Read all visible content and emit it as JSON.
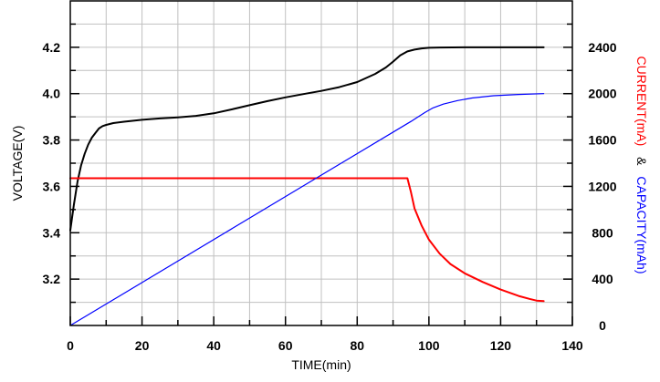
{
  "chart_data": {
    "type": "line",
    "title": "",
    "xlabel": "TIME(min)",
    "ylabel": "VOLTAGE(V)",
    "y2label": {
      "parts": [
        {
          "text": "CURRENT(mA)",
          "color": "#ff0000"
        },
        {
          "text": "&",
          "color": "#000000"
        },
        {
          "text": "CAPACITY(mAh)",
          "color": "#0000ff"
        }
      ]
    },
    "xlim": [
      0,
      140
    ],
    "ylim": [
      3.0,
      4.4
    ],
    "y2lim": [
      0,
      2800
    ],
    "xticks": [
      0,
      20,
      40,
      60,
      80,
      100,
      120,
      140
    ],
    "yticks": [
      3.2,
      3.4,
      3.6,
      3.8,
      4.0,
      4.2
    ],
    "y2ticks": [
      0,
      400,
      800,
      1200,
      1600,
      2000,
      2400
    ],
    "grid": true,
    "series": [
      {
        "name": "VOLTAGE(V)",
        "axis": "left",
        "color": "#000000",
        "points": [
          [
            0,
            3.41
          ],
          [
            1,
            3.52
          ],
          [
            2,
            3.62
          ],
          [
            3,
            3.69
          ],
          [
            4,
            3.74
          ],
          [
            5,
            3.78
          ],
          [
            6,
            3.81
          ],
          [
            7,
            3.83
          ],
          [
            8,
            3.85
          ],
          [
            9,
            3.86
          ],
          [
            10,
            3.865
          ],
          [
            12,
            3.873
          ],
          [
            15,
            3.879
          ],
          [
            20,
            3.887
          ],
          [
            25,
            3.893
          ],
          [
            30,
            3.898
          ],
          [
            35,
            3.904
          ],
          [
            40,
            3.915
          ],
          [
            45,
            3.932
          ],
          [
            50,
            3.95
          ],
          [
            55,
            3.968
          ],
          [
            60,
            3.984
          ],
          [
            65,
            3.998
          ],
          [
            70,
            4.012
          ],
          [
            75,
            4.028
          ],
          [
            80,
            4.05
          ],
          [
            85,
            4.085
          ],
          [
            88,
            4.113
          ],
          [
            90,
            4.138
          ],
          [
            92,
            4.165
          ],
          [
            94,
            4.182
          ],
          [
            96,
            4.19
          ],
          [
            98,
            4.195
          ],
          [
            100,
            4.198
          ],
          [
            103,
            4.199
          ],
          [
            110,
            4.2
          ],
          [
            120,
            4.2
          ],
          [
            132,
            4.2
          ]
        ]
      },
      {
        "name": "CURRENT(mA)",
        "axis": "right",
        "color": "#ff0000",
        "points": [
          [
            0,
            1270
          ],
          [
            94,
            1270
          ],
          [
            95,
            1150
          ],
          [
            96,
            1010
          ],
          [
            98,
            860
          ],
          [
            100,
            740
          ],
          [
            103,
            620
          ],
          [
            106,
            530
          ],
          [
            110,
            450
          ],
          [
            115,
            375
          ],
          [
            120,
            310
          ],
          [
            125,
            255
          ],
          [
            128,
            230
          ],
          [
            130,
            215
          ],
          [
            132,
            210
          ]
        ]
      },
      {
        "name": "CAPACITY(mAh)",
        "axis": "right",
        "color": "#0000ff",
        "points": [
          [
            0,
            0
          ],
          [
            95,
            1760
          ],
          [
            97,
            1800
          ],
          [
            99,
            1840
          ],
          [
            101,
            1875
          ],
          [
            104,
            1910
          ],
          [
            108,
            1940
          ],
          [
            112,
            1962
          ],
          [
            118,
            1982
          ],
          [
            125,
            1993
          ],
          [
            132,
            2000
          ]
        ]
      }
    ]
  }
}
